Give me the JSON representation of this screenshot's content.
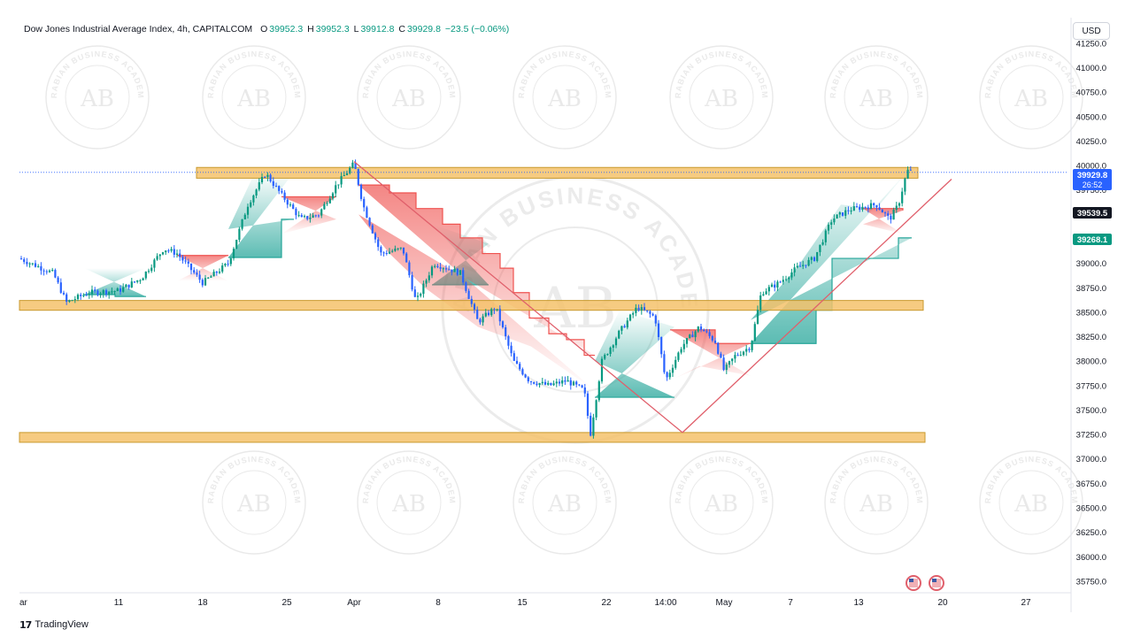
{
  "header": {
    "symbol": "Dow Jones Industrial Average Index, 4h, CAPITALCOM",
    "o_label": "O",
    "o_value": "39952.3",
    "h_label": "H",
    "h_value": "39952.3",
    "l_label": "L",
    "l_value": "39912.8",
    "c_label": "C",
    "c_value": "39929.8",
    "change": "−23.5 (−0.06%)"
  },
  "currency_button": "USD",
  "footer": {
    "brand": "TradingView",
    "logo_glyph": "17"
  },
  "watermark": {
    "initials": "AB",
    "ring_text": "ARABIAN BUSINESS ACADEMY"
  },
  "colors": {
    "up": "#089981",
    "down": "#2962ff",
    "zone": "#f5c26b",
    "zone_border": "#c99a2e",
    "trend": "#e05f6b",
    "cloud_bull": "#26a69a",
    "cloud_bear": "#ef5350"
  },
  "price_tags": [
    {
      "value": "39929.8",
      "sub": "26:52",
      "bg": "#2962ff"
    },
    {
      "value": "39539.5",
      "sub": "",
      "bg": "#131722"
    },
    {
      "value": "39268.1",
      "sub": "",
      "bg": "#089981"
    }
  ],
  "chart_data": {
    "type": "candlestick",
    "title": "Dow Jones Industrial Average Index, 4h, CAPITALCOM",
    "ylim": [
      35650,
      41350
    ],
    "y_ticks": [
      35750,
      36000,
      36250,
      36500,
      36750,
      37000,
      37250,
      37500,
      37750,
      38000,
      38250,
      38500,
      38750,
      39000,
      39250,
      39500,
      39750,
      40000,
      40250,
      40500,
      40750,
      41000,
      41250
    ],
    "x_ticks": [
      "ar",
      "11",
      "18",
      "25",
      "Apr",
      "8",
      "15",
      "22",
      "14:00",
      "May",
      "7",
      "13",
      "20",
      "27"
    ],
    "last_price": 39929.8,
    "zones": [
      {
        "name": "resistance",
        "low": 39870,
        "high": 39980
      },
      {
        "name": "support-1",
        "low": 38520,
        "high": 38620
      },
      {
        "name": "support-2",
        "low": 37170,
        "high": 37270
      }
    ],
    "trendlines": [
      {
        "from": [
          "Apr",
          40050
        ],
        "to": [
          "22",
          37280
        ]
      },
      {
        "from": [
          "22",
          37280
        ],
        "to": [
          "20",
          40000
        ]
      }
    ],
    "price_path": [
      {
        "t": "ar",
        "close": 39020
      },
      {
        "t": "11",
        "close": 38700
      },
      {
        "t": "18",
        "close": 38900
      },
      {
        "t": "25",
        "close": 39700
      },
      {
        "t": "Apr",
        "close": 40020
      },
      {
        "t": "8",
        "close": 38600
      },
      {
        "t": "15",
        "close": 37900
      },
      {
        "t": "22",
        "close": 37250
      },
      {
        "t": "14:00",
        "close": 38540
      },
      {
        "t": "May",
        "close": 38350
      },
      {
        "t": "7",
        "close": 38920
      },
      {
        "t": "13",
        "close": 39580
      },
      {
        "t": "20",
        "close": 39930
      }
    ]
  }
}
